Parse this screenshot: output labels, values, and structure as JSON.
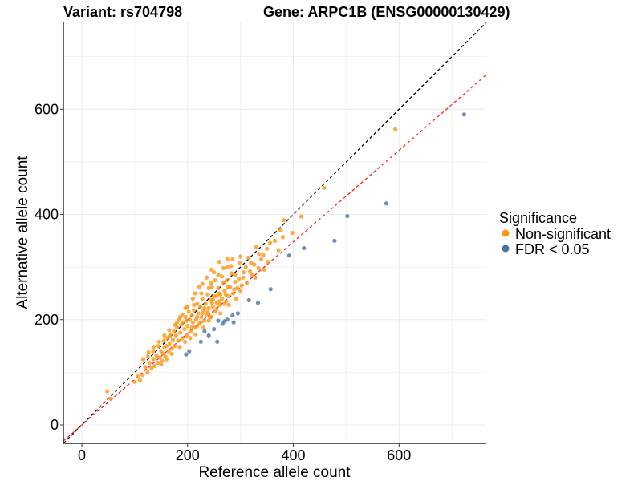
{
  "colors": {
    "non_significant": "#ff9414",
    "significant": "#4a73a4",
    "diagonal": "#000000",
    "fit_line": "#ff2020",
    "grid": "#ebebeb"
  },
  "chart_data": {
    "type": "scatter",
    "title_left": "Variant: rs704798",
    "title_right": "Gene: ARPC1B (ENSG00000130429)",
    "xlabel": "Reference allele count",
    "ylabel": "Alternative allele count",
    "xlim": [
      -35,
      765
    ],
    "ylim": [
      -35,
      765
    ],
    "xticks": [
      0,
      200,
      400,
      600
    ],
    "yticks": [
      0,
      200,
      400,
      600
    ],
    "grid": true,
    "legend_position": "right",
    "legend": {
      "title": "Significance",
      "entries": [
        {
          "key": "non_significant",
          "label": "Non-significant"
        },
        {
          "key": "significant",
          "label": "FDR < 0.05"
        }
      ]
    },
    "reference_lines": [
      {
        "name": "diagonal-line",
        "slope": 1.0,
        "intercept": 0,
        "style": "dashed",
        "color": "#000000"
      },
      {
        "name": "fit-line",
        "slope": 0.87,
        "intercept": 0,
        "style": "dashed",
        "color": "#ff2020"
      }
    ],
    "series": [
      {
        "name": "FDR < 0.05",
        "key": "significant",
        "points": [
          [
            723,
            590
          ],
          [
            576,
            421
          ],
          [
            502,
            397
          ],
          [
            478,
            350
          ],
          [
            420,
            336
          ],
          [
            392,
            322
          ],
          [
            357,
            258
          ],
          [
            333,
            232
          ],
          [
            316,
            237
          ],
          [
            295,
            212
          ],
          [
            287,
            195
          ],
          [
            285,
            208
          ],
          [
            275,
            200
          ],
          [
            270,
            197
          ],
          [
            266,
            192
          ],
          [
            258,
            198
          ],
          [
            256,
            158
          ],
          [
            240,
            170
          ],
          [
            232,
            178
          ],
          [
            225,
            158
          ],
          [
            197,
            134
          ],
          [
            203,
            140
          ],
          [
            250,
            182
          ]
        ]
      },
      {
        "name": "Non-significant",
        "key": "non_significant",
        "points": [
          [
            593,
            562
          ],
          [
            458,
            451
          ],
          [
            415,
            396
          ],
          [
            382,
            389
          ],
          [
            398,
            365
          ],
          [
            380,
            357
          ],
          [
            372,
            332
          ],
          [
            356,
            346
          ],
          [
            352,
            310
          ],
          [
            343,
            323
          ],
          [
            339,
            315
          ],
          [
            334,
            298
          ],
          [
            326,
            305
          ],
          [
            322,
            285
          ],
          [
            318,
            292
          ],
          [
            310,
            300
          ],
          [
            305,
            280
          ],
          [
            302,
            265
          ],
          [
            297,
            278
          ],
          [
            294,
            260
          ],
          [
            290,
            272
          ],
          [
            286,
            250
          ],
          [
            283,
            288
          ],
          [
            280,
            262
          ],
          [
            277,
            245
          ],
          [
            275,
            300
          ],
          [
            273,
            235
          ],
          [
            270,
            255
          ],
          [
            268,
            270
          ],
          [
            265,
            240
          ],
          [
            262,
            228
          ],
          [
            260,
            250
          ],
          [
            258,
            260
          ],
          [
            255,
            232
          ],
          [
            253,
            215
          ],
          [
            250,
            245
          ],
          [
            248,
            225
          ],
          [
            246,
            262
          ],
          [
            244,
            238
          ],
          [
            242,
            205
          ],
          [
            240,
            222
          ],
          [
            238,
            248
          ],
          [
            236,
            210
          ],
          [
            234,
            230
          ],
          [
            232,
            198
          ],
          [
            230,
            218
          ],
          [
            228,
            240
          ],
          [
            226,
            205
          ],
          [
            224,
            225
          ],
          [
            222,
            192
          ],
          [
            220,
            212
          ],
          [
            218,
            230
          ],
          [
            216,
            200
          ],
          [
            214,
            185
          ],
          [
            212,
            218
          ],
          [
            210,
            195
          ],
          [
            208,
            208
          ],
          [
            206,
            178
          ],
          [
            204,
            200
          ],
          [
            202,
            215
          ],
          [
            200,
            188
          ],
          [
            198,
            170
          ],
          [
            196,
            205
          ],
          [
            194,
            182
          ],
          [
            192,
            195
          ],
          [
            190,
            165
          ],
          [
            188,
            190
          ],
          [
            186,
            175
          ],
          [
            184,
            200
          ],
          [
            182,
            160
          ],
          [
            180,
            185
          ],
          [
            178,
            170
          ],
          [
            176,
            150
          ],
          [
            174,
            178
          ],
          [
            172,
            162
          ],
          [
            170,
            145
          ],
          [
            168,
            172
          ],
          [
            166,
            155
          ],
          [
            164,
            140
          ],
          [
            162,
            165
          ],
          [
            160,
            150
          ],
          [
            158,
            130
          ],
          [
            156,
            148
          ],
          [
            154,
            135
          ],
          [
            152,
            122
          ],
          [
            150,
            140
          ],
          [
            147,
            128
          ],
          [
            144,
            118
          ],
          [
            141,
            132
          ],
          [
            138,
            112
          ],
          [
            135,
            125
          ],
          [
            132,
            108
          ],
          [
            128,
            118
          ],
          [
            124,
            100
          ],
          [
            120,
            110
          ],
          [
            115,
            95
          ],
          [
            110,
            85
          ],
          [
            106,
            92
          ],
          [
            100,
            82
          ],
          [
            55,
            50
          ],
          [
            48,
            64
          ],
          [
            222,
            262
          ],
          [
            236,
            280
          ],
          [
            252,
            275
          ],
          [
            268,
            298
          ],
          [
            285,
            315
          ],
          [
            300,
            320
          ],
          [
            210,
            240
          ],
          [
            245,
            205
          ],
          [
            262,
            212
          ],
          [
            278,
            228
          ],
          [
            292,
            240
          ],
          [
            215,
            172
          ],
          [
            230,
            185
          ],
          [
            195,
            158
          ],
          [
            205,
            165
          ],
          [
            225,
            195
          ],
          [
            240,
            198
          ],
          [
            255,
            220
          ],
          [
            270,
            230
          ],
          [
            185,
            148
          ],
          [
            170,
            135
          ],
          [
            160,
            125
          ],
          [
            150,
            115
          ],
          [
            240,
            260
          ],
          [
            255,
            245
          ],
          [
            218,
            205
          ],
          [
            232,
            222
          ],
          [
            246,
            232
          ],
          [
            262,
            248
          ],
          [
            276,
            262
          ],
          [
            290,
            285
          ],
          [
            306,
            290
          ],
          [
            320,
            308
          ],
          [
            335,
            325
          ],
          [
            350,
            335
          ],
          [
            365,
            350
          ],
          [
            375,
            370
          ],
          [
            200,
            225
          ],
          [
            190,
            210
          ],
          [
            180,
            195
          ],
          [
            165,
            180
          ],
          [
            155,
            160
          ],
          [
            145,
            150
          ],
          [
            135,
            140
          ],
          [
            125,
            130
          ],
          [
            212,
            228
          ],
          [
            226,
            250
          ],
          [
            244,
            270
          ],
          [
            258,
            285
          ],
          [
            274,
            275
          ],
          [
            288,
            258
          ],
          [
            300,
            255
          ],
          [
            312,
            270
          ],
          [
            328,
            280
          ],
          [
            345,
            295
          ],
          [
            198,
            198
          ],
          [
            208,
            185
          ],
          [
            218,
            188
          ],
          [
            228,
            212
          ],
          [
            238,
            215
          ],
          [
            248,
            238
          ],
          [
            260,
            235
          ],
          [
            272,
            248
          ],
          [
            196,
            222
          ],
          [
            186,
            205
          ],
          [
            176,
            190
          ],
          [
            166,
            168
          ],
          [
            156,
            170
          ],
          [
            146,
            158
          ],
          [
            136,
            148
          ],
          [
            126,
            138
          ],
          [
            116,
            125
          ],
          [
            214,
            250
          ],
          [
            228,
            268
          ],
          [
            250,
            290
          ],
          [
            265,
            282
          ],
          [
            282,
            302
          ],
          [
            298,
            308
          ],
          [
            315,
            318
          ],
          [
            330,
            338
          ],
          [
            260,
            310
          ],
          [
            275,
            315
          ],
          [
            245,
            295
          ]
        ]
      }
    ]
  }
}
